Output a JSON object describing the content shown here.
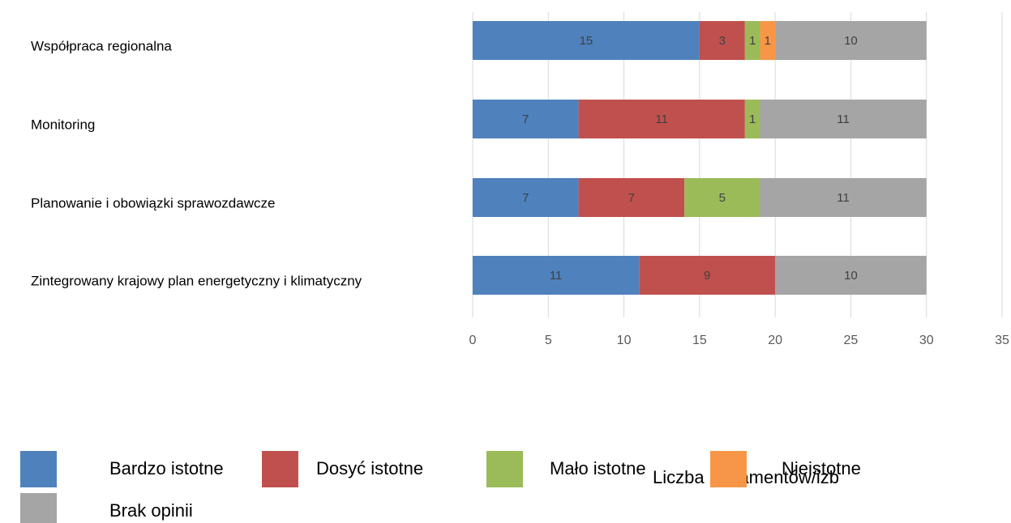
{
  "chart_data": {
    "type": "stacked_bar_horizontal",
    "categories": [
      "Współpraca regionalna",
      "Monitoring",
      "Planowanie i obowiązki sprawozdawcze",
      "Zintegrowany krajowy plan energetyczny i klimatyczny"
    ],
    "series": [
      {
        "name": "Bardzo istotne",
        "color": "#4f81bd",
        "values": [
          15,
          7,
          7,
          11
        ]
      },
      {
        "name": "Dosyć istotne",
        "color": "#c0504d",
        "values": [
          3,
          11,
          7,
          9
        ]
      },
      {
        "name": "Mało istotne",
        "color": "#9bbb59",
        "values": [
          1,
          1,
          5,
          null
        ]
      },
      {
        "name": "Nieistotne",
        "color": "#f79646",
        "values": [
          1,
          null,
          null,
          null
        ]
      },
      {
        "name": "Brak opinii",
        "color": "#a5a5a5",
        "values": [
          10,
          11,
          11,
          10
        ]
      }
    ],
    "x_label": "Liczba parlamentów/izb",
    "xlim": [
      0,
      35
    ],
    "xticks": [
      0,
      5,
      10,
      15,
      20,
      25,
      30,
      35
    ],
    "grid": true
  }
}
